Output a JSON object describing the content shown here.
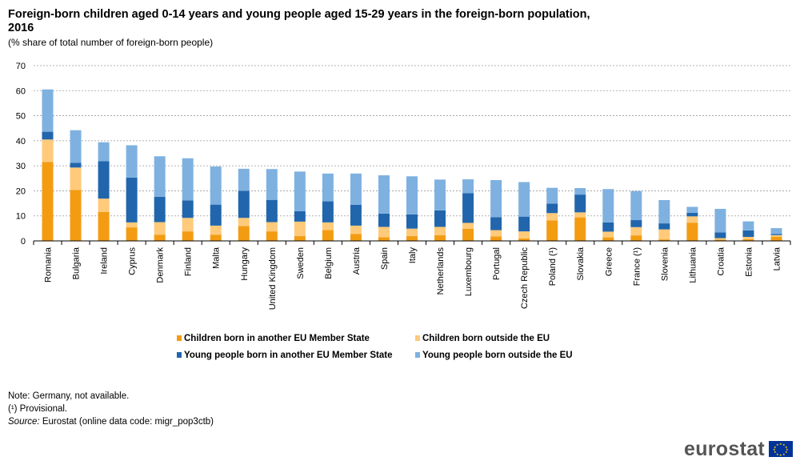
{
  "header": {
    "title": "Foreign-born children aged 0-14 years and young people aged 15-29 years in the foreign-born population, 2016",
    "subtitle": "(% share of total number of foreign-born  people)"
  },
  "notes": {
    "line1": "Note: Germany, not available.",
    "line2": "(¹) Provisional.",
    "source_label": "Source:",
    "source_text": " Eurostat (online data code: migr_pop3ctb)"
  },
  "logo": {
    "text": "eurostat",
    "icon": "eu-flag-icon"
  },
  "chart_data": {
    "type": "bar",
    "stacked": true,
    "title": "Foreign-born children aged 0-14 years and young people aged 15-29 years in the foreign-born population, 2016",
    "ylabel": "(% share of total number of foreign-born  people)",
    "ylim": [
      0,
      70
    ],
    "yticks": [
      0,
      10,
      20,
      30,
      40,
      50,
      60,
      70
    ],
    "grid": true,
    "legend_position": "bottom",
    "categories": [
      "Romania",
      "Bulgaria",
      "Ireland",
      "Cyprus",
      "Denmark",
      "Finland",
      "Malta",
      "Hungary",
      "United Kingdom",
      "Sweden",
      "Belgium",
      "Austria",
      "Spain",
      "Italy",
      "Netherlands",
      "Luxembourg",
      "Portugal",
      "Czech Republic",
      "Poland (¹)",
      "Slovakia",
      "Greece",
      "France (¹)",
      "Slovenia",
      "Lithuania",
      "Croatia",
      "Estonia",
      "Latvia"
    ],
    "series": [
      {
        "name": "Children born in another EU Member State",
        "color": "#F39C12",
        "values": [
          31.5,
          20.3,
          11.6,
          5.4,
          2.5,
          3.8,
          2.5,
          5.9,
          3.8,
          1.9,
          4.3,
          2.8,
          1.5,
          1.9,
          2.3,
          4.8,
          1.8,
          1.0,
          8.2,
          9.4,
          1.4,
          2.2,
          0.6,
          7.3,
          0.5,
          0.7,
          1.7
        ]
      },
      {
        "name": "Children born outside the EU",
        "color": "#FFCA7A",
        "values": [
          9.0,
          9.0,
          5.3,
          2.0,
          5.0,
          5.4,
          3.6,
          3.3,
          3.7,
          5.8,
          3.1,
          3.3,
          4.1,
          3.0,
          3.3,
          2.4,
          2.5,
          2.8,
          2.9,
          2.0,
          2.3,
          3.3,
          4.0,
          2.5,
          0.6,
          0.9,
          0.6
        ]
      },
      {
        "name": "Young people born in another EU Member State",
        "color": "#2166AC",
        "values": [
          3.1,
          1.9,
          14.9,
          17.9,
          10.1,
          7.0,
          8.4,
          10.8,
          8.9,
          4.2,
          8.4,
          8.3,
          5.3,
          5.7,
          6.6,
          11.9,
          5.2,
          5.9,
          3.8,
          7.1,
          3.7,
          2.8,
          2.4,
          1.4,
          2.3,
          2.6,
          0.5
        ]
      },
      {
        "name": "Young people born outside the EU",
        "color": "#7EB1E0",
        "values": [
          16.9,
          13.0,
          7.6,
          12.9,
          16.2,
          16.8,
          15.2,
          8.8,
          12.3,
          15.8,
          11.1,
          12.5,
          15.3,
          15.2,
          12.3,
          5.5,
          14.8,
          13.8,
          6.3,
          2.6,
          13.3,
          11.6,
          9.3,
          2.4,
          9.4,
          3.6,
          2.3
        ]
      }
    ]
  }
}
